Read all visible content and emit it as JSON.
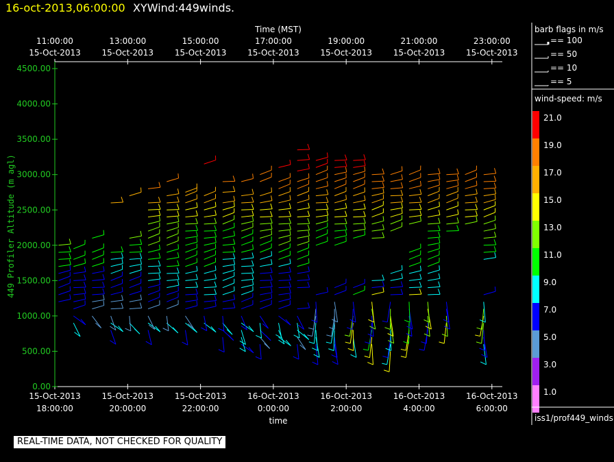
{
  "header": {
    "datetime": "16-oct-2013,06:00:00",
    "product": "XYWind:449winds."
  },
  "top_axis": {
    "title": "Time (MST)",
    "ticks": [
      {
        "time": "11:00:00",
        "date": "15-Oct-2013"
      },
      {
        "time": "13:00:00",
        "date": "15-Oct-2013"
      },
      {
        "time": "15:00:00",
        "date": "15-Oct-2013"
      },
      {
        "time": "17:00:00",
        "date": "15-Oct-2013"
      },
      {
        "time": "19:00:00",
        "date": "15-Oct-2013"
      },
      {
        "time": "21:00:00",
        "date": "15-Oct-2013"
      },
      {
        "time": "23:00:00",
        "date": "15-Oct-2013"
      }
    ]
  },
  "bottom_axis": {
    "title": "time",
    "ticks": [
      {
        "date": "15-Oct-2013",
        "time": "18:00:00"
      },
      {
        "date": "15-Oct-2013",
        "time": "20:00:00"
      },
      {
        "date": "15-Oct-2013",
        "time": "22:00:00"
      },
      {
        "date": "16-Oct-2013",
        "time": "0:00:00"
      },
      {
        "date": "16-Oct-2013",
        "time": "2:00:00"
      },
      {
        "date": "16-Oct-2013",
        "time": "4:00:00"
      },
      {
        "date": "16-Oct-2013",
        "time": "6:00:00"
      }
    ]
  },
  "y_axis": {
    "title": "449 Profiler Altitude (m agl)",
    "ticks": [
      "0.00",
      "500.00",
      "1000.00",
      "1500.00",
      "2000.00",
      "2500.00",
      "3000.00",
      "3500.00",
      "4000.00",
      "4500.00"
    ],
    "color": "#22cc22"
  },
  "legend": {
    "barb_title": "barb flags in m/s",
    "barb_items": [
      "== 100",
      "== 50",
      "== 10",
      "== 5"
    ],
    "speed_title": "wind-speed: m/s",
    "speed_bins": [
      {
        "label": "21.0",
        "color": "#ff0000"
      },
      {
        "label": "19.0",
        "color": "#ff8000"
      },
      {
        "label": "17.0",
        "color": "#ffb000"
      },
      {
        "label": "15.0",
        "color": "#ffff00"
      },
      {
        "label": "13.0",
        "color": "#80ff00"
      },
      {
        "label": "11.0",
        "color": "#00ff00"
      },
      {
        "label": "9.0",
        "color": "#00ffff"
      },
      {
        "label": "7.0",
        "color": "#0000ff"
      },
      {
        "label": "5.0",
        "color": "#5b9bd5"
      },
      {
        "label": "3.0",
        "color": "#a020f0"
      },
      {
        "label": "1.0",
        "color": "#ff80ff"
      }
    ],
    "source": "iss1/prof449_winds"
  },
  "notice": "REAL-TIME DATA, NOT CHECKED FOR QUALITY",
  "chart_data": {
    "type": "wind-barb profile",
    "x_label": "time",
    "y_label": "449 Profiler Altitude (m agl)",
    "x_range_hours": [
      18,
      30
    ],
    "y_range": [
      0,
      4600
    ],
    "note": "x values are hours since 15-Oct-2013 00:00 MST; 24+ means 16-Oct",
    "columns": [
      {
        "x": 18.1,
        "heights": [
          1200,
          1300,
          1400,
          1500,
          1600,
          1700,
          1800,
          1900,
          2000
        ]
      },
      {
        "x": 18.5,
        "heights": [
          900,
          1000,
          1100,
          1200,
          1300,
          1400,
          1500,
          1600,
          1700,
          1800,
          1950
        ]
      },
      {
        "x": 19.0,
        "heights": [
          1000,
          1100,
          1200,
          1300,
          1400,
          1500,
          1600,
          1700,
          1800,
          1900,
          2100
        ]
      },
      {
        "x": 19.5,
        "heights": [
          800,
          900,
          1000,
          1100,
          1200,
          1300,
          1400,
          1500,
          1600,
          1700,
          1800,
          1900,
          2600
        ]
      },
      {
        "x": 20.0,
        "heights": [
          900,
          1000,
          1100,
          1200,
          1300,
          1400,
          1500,
          1600,
          1700,
          1800,
          1900,
          2000,
          2100,
          2700
        ]
      },
      {
        "x": 20.5,
        "heights": [
          800,
          900,
          1000,
          1100,
          1200,
          1300,
          1400,
          1500,
          1600,
          1700,
          1800,
          1900,
          2000,
          2100,
          2200,
          2300,
          2400,
          2500,
          2600,
          2800
        ]
      },
      {
        "x": 21.0,
        "heights": [
          900,
          1000,
          1100,
          1200,
          1300,
          1400,
          1500,
          1600,
          1700,
          1800,
          1900,
          2000,
          2100,
          2200,
          2300,
          2400,
          2500,
          2600,
          2700,
          2900
        ]
      },
      {
        "x": 21.5,
        "heights": [
          800,
          900,
          1000,
          1100,
          1200,
          1300,
          1400,
          1500,
          1600,
          1700,
          1800,
          1900,
          2000,
          2100,
          2200,
          2300,
          2400,
          2500,
          2600,
          2700,
          2750
        ]
      },
      {
        "x": 22.0,
        "heights": [
          900,
          1000,
          1100,
          1200,
          1300,
          1400,
          1500,
          1600,
          1700,
          1800,
          1900,
          2000,
          2100,
          2200,
          2300,
          2400,
          2500,
          2600,
          2700,
          3150
        ]
      },
      {
        "x": 22.5,
        "heights": [
          700,
          800,
          900,
          1000,
          1100,
          1200,
          1300,
          1400,
          1500,
          1600,
          1700,
          1800,
          1900,
          2000,
          2100,
          2200,
          2300,
          2400,
          2500,
          2600,
          2750,
          2900
        ]
      },
      {
        "x": 23.0,
        "heights": [
          600,
          700,
          800,
          900,
          1000,
          1100,
          1200,
          1300,
          1400,
          1500,
          1600,
          1700,
          1800,
          1900,
          2000,
          2100,
          2200,
          2300,
          2400,
          2500,
          2600,
          2700,
          2900
        ]
      },
      {
        "x": 23.5,
        "heights": [
          600,
          700,
          800,
          900,
          1000,
          1100,
          1200,
          1300,
          1400,
          1500,
          1600,
          1700,
          1800,
          1900,
          2000,
          2100,
          2200,
          2300,
          2400,
          2500,
          2600,
          2700,
          2900,
          3000
        ]
      },
      {
        "x": 24.0,
        "heights": [
          700,
          800,
          900,
          1000,
          1100,
          1200,
          1300,
          1400,
          1500,
          1600,
          1700,
          1800,
          1900,
          2000,
          2100,
          2200,
          2300,
          2400,
          2500,
          2600,
          2700,
          2800,
          2900,
          3100
        ]
      },
      {
        "x": 24.5,
        "heights": [
          600,
          700,
          800,
          900,
          1000,
          1100,
          1400,
          1500,
          1600,
          1700,
          1800,
          1900,
          2000,
          2100,
          2200,
          2300,
          2400,
          2500,
          2600,
          2700,
          2800,
          2900,
          3050,
          3200,
          3350
        ]
      },
      {
        "x": 25.0,
        "heights": [
          600,
          700,
          800,
          900,
          1000,
          1100,
          1200,
          1300,
          2000,
          2100,
          2200,
          2300,
          2400,
          2500,
          2600,
          2700,
          2800,
          2900,
          3000,
          3100,
          3200
        ]
      },
      {
        "x": 25.5,
        "heights": [
          600,
          700,
          800,
          900,
          1000,
          1100,
          1200,
          1300,
          1400,
          2000,
          2100,
          2200,
          2300,
          2400,
          2500,
          2600,
          2700,
          2800,
          2900,
          3000,
          3100,
          3200
        ]
      },
      {
        "x": 26.0,
        "heights": [
          700,
          800,
          900,
          1000,
          1100,
          1200,
          1300,
          1400,
          2100,
          2200,
          2300,
          2400,
          2500,
          2600,
          2700,
          2800,
          2900,
          3000,
          3100,
          3200
        ]
      },
      {
        "x": 26.5,
        "heights": [
          600,
          700,
          800,
          900,
          1000,
          1100,
          1200,
          1300,
          1400,
          1500,
          2100,
          2200,
          2300,
          2400,
          2500,
          2600,
          2700,
          2800,
          2900,
          3000
        ]
      },
      {
        "x": 27.0,
        "heights": [
          500,
          600,
          700,
          800,
          900,
          1000,
          1100,
          1200,
          1300,
          1400,
          1500,
          1600,
          2200,
          2300,
          2400,
          2500,
          2600,
          2700,
          2800,
          2900,
          3000
        ]
      },
      {
        "x": 27.5,
        "heights": [
          700,
          800,
          900,
          1000,
          1100,
          1200,
          1300,
          1400,
          1500,
          1600,
          1700,
          1800,
          1900,
          2300,
          2400,
          2500,
          2600,
          2700,
          2800,
          2900,
          3000
        ]
      },
      {
        "x": 28.0,
        "heights": [
          800,
          900,
          1000,
          1100,
          1200,
          1300,
          1400,
          1500,
          1600,
          1700,
          1800,
          1900,
          2000,
          2100,
          2200,
          2300,
          2400,
          2500,
          2600,
          2700,
          2800,
          2900,
          3000
        ]
      },
      {
        "x": 28.5,
        "heights": [
          900,
          1000,
          1100,
          1200,
          2200,
          2300,
          2400,
          2500,
          2600,
          2700,
          2800,
          2900,
          3000
        ]
      },
      {
        "x": 29.0,
        "heights": [
          2300,
          2400,
          2500,
          2600,
          2700,
          2800,
          2900,
          3000
        ]
      },
      {
        "x": 29.5,
        "heights": [
          600,
          700,
          800,
          900,
          1000,
          1100,
          1200,
          1300,
          1800,
          1900,
          2000,
          2100,
          2200,
          2300,
          2400,
          2500,
          2600,
          2700,
          2800,
          2900,
          3000
        ]
      }
    ]
  }
}
